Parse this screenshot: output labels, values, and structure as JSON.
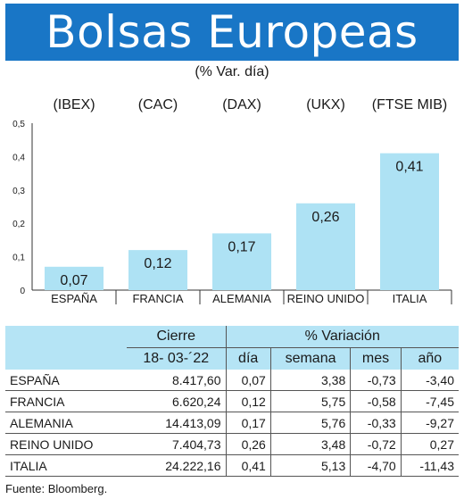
{
  "banner": {
    "title": "Bolsas Europeas"
  },
  "subtitle": "(% Var. día)",
  "chart_data": {
    "type": "bar",
    "title": "Bolsas Europeas",
    "subtitle": "(% Var. día)",
    "index_labels": [
      "(IBEX)",
      "(CAC)",
      "(DAX)",
      "(UKX)",
      "(FTSE MIB)"
    ],
    "categories": [
      "ESPAÑA",
      "FRANCIA",
      "ALEMANIA",
      "REINO UNIDO",
      "ITALIA"
    ],
    "values": [
      0.07,
      0.12,
      0.17,
      0.26,
      0.41
    ],
    "value_labels": [
      "0,07",
      "0,12",
      "0,17",
      "0,26",
      "0,41"
    ],
    "ylim": [
      0,
      0.5
    ],
    "yticks": [
      0,
      0.1,
      0.2,
      0.3,
      0.4,
      0.5
    ],
    "ytick_labels": [
      "0",
      "0,1",
      "0,2",
      "0,3",
      "0,4",
      "0,5"
    ],
    "bar_color": "#aee2f4",
    "grid": false
  },
  "table": {
    "group_headers": {
      "cierre": "Cierre",
      "variacion": "% Variación"
    },
    "sub_headers": {
      "fecha": "18- 03-´22",
      "dia": "día",
      "semana": "semana",
      "mes": "mes",
      "ano": "año"
    },
    "rows": [
      {
        "pais": "ESPAÑA",
        "cierre": "8.417,60",
        "dia": "0,07",
        "semana": "3,38",
        "mes": "-0,73",
        "ano": "-3,40"
      },
      {
        "pais": "FRANCIA",
        "cierre": "6.620,24",
        "dia": "0,12",
        "semana": "5,75",
        "mes": "-0,58",
        "ano": "-7,45"
      },
      {
        "pais": "ALEMANIA",
        "cierre": "14.413,09",
        "dia": "0,17",
        "semana": "5,76",
        "mes": "-0,33",
        "ano": "-9,27"
      },
      {
        "pais": "REINO UNIDO",
        "cierre": "7.404,73",
        "dia": "0,26",
        "semana": "3,48",
        "mes": "-0,72",
        "ano": "0,27"
      },
      {
        "pais": "ITALIA",
        "cierre": "24.222,16",
        "dia": "0,41",
        "semana": "5,13",
        "mes": "-4,70",
        "ano": "-11,43"
      }
    ]
  },
  "source": "Fuente: Bloomberg.",
  "colors": {
    "banner": "#1976c6",
    "bar": "#aee2f4",
    "table_header": "#b5e4f5"
  }
}
